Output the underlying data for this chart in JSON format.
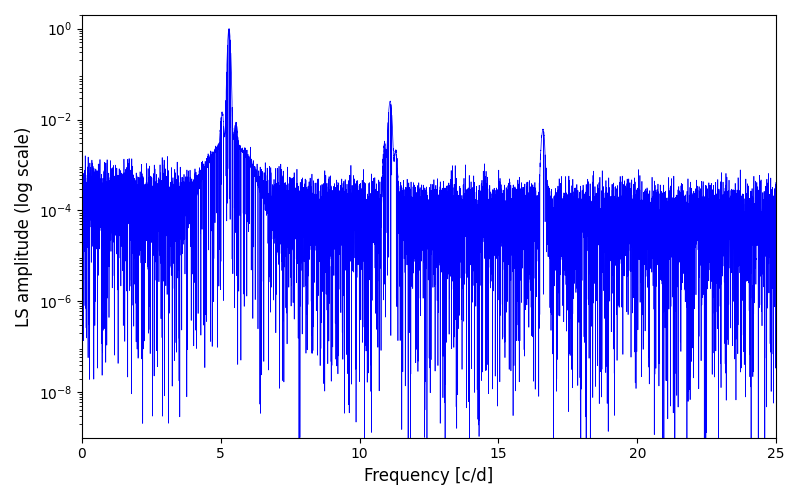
{
  "title": "",
  "xlabel": "Frequency [c/d]",
  "ylabel": "LS amplitude (log scale)",
  "xlim": [
    0,
    25
  ],
  "ylim": [
    1e-09,
    2
  ],
  "line_color": "#0000ff",
  "line_width": 0.5,
  "yscale": "log",
  "background_color": "#ffffff",
  "peak1_freq": 5.3,
  "peak1_amp": 1.0,
  "peak2_freq": 11.1,
  "peak2_amp": 0.025,
  "peak3_freq": 16.6,
  "peak3_amp": 0.006,
  "noise_floor": 0.0001,
  "n_points": 10000,
  "freq_max": 25.0,
  "seed": 137
}
